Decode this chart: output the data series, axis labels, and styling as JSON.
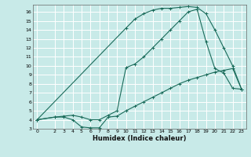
{
  "title": "",
  "xlabel": "Humidex (Indice chaleur)",
  "ylabel": "",
  "bg_color": "#c8eae8",
  "grid_color": "#ffffff",
  "line_color": "#1a6b5a",
  "xlim": [
    -0.5,
    23.5
  ],
  "ylim": [
    3,
    16.8
  ],
  "xticks": [
    0,
    2,
    3,
    4,
    5,
    6,
    7,
    8,
    9,
    10,
    11,
    12,
    13,
    14,
    15,
    16,
    17,
    18,
    19,
    20,
    21,
    22,
    23
  ],
  "yticks": [
    3,
    4,
    5,
    6,
    7,
    8,
    9,
    10,
    11,
    12,
    13,
    14,
    15,
    16
  ],
  "curve1_x": [
    0,
    2,
    3,
    4,
    5,
    6,
    7,
    8,
    9,
    10,
    11,
    12,
    13,
    14,
    15,
    16,
    17,
    18,
    19,
    20,
    21,
    22,
    23
  ],
  "curve1_y": [
    4.0,
    4.3,
    4.3,
    4.0,
    3.2,
    3.1,
    3.1,
    4.3,
    4.4,
    5.0,
    5.5,
    6.0,
    6.5,
    7.0,
    7.5,
    8.0,
    8.4,
    8.7,
    9.0,
    9.3,
    9.5,
    9.7,
    7.4
  ],
  "curve2_x": [
    0,
    2,
    3,
    4,
    5,
    6,
    7,
    8,
    9,
    10,
    11,
    12,
    13,
    14,
    15,
    16,
    17,
    18,
    19,
    20,
    21,
    22,
    23
  ],
  "curve2_y": [
    4.0,
    4.3,
    4.4,
    4.5,
    4.3,
    4.0,
    4.0,
    4.5,
    5.0,
    9.8,
    10.2,
    11.0,
    12.0,
    13.0,
    14.0,
    15.0,
    16.0,
    16.3,
    12.7,
    9.7,
    9.2,
    7.5,
    7.4
  ],
  "curve3_x": [
    0,
    10,
    11,
    12,
    13,
    14,
    15,
    16,
    17,
    18,
    19,
    20,
    21,
    22,
    23
  ],
  "curve3_y": [
    4.0,
    14.2,
    15.2,
    15.8,
    16.2,
    16.4,
    16.4,
    16.5,
    16.6,
    16.5,
    15.8,
    14.0,
    12.0,
    10.0,
    7.4
  ],
  "tick_fontsize": 4.5,
  "xlabel_fontsize": 6.0
}
